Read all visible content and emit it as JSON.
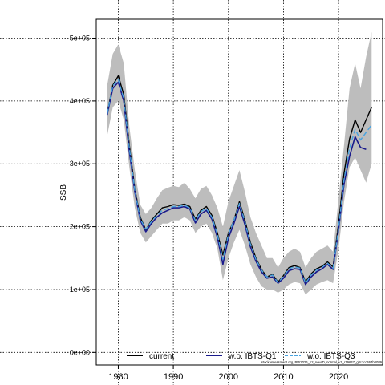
{
  "chart_data": {
    "type": "line",
    "title": "",
    "xlabel": "",
    "ylabel": "SSB",
    "xlim": [
      1976,
      2028
    ],
    "ylim": [
      -20000,
      530000
    ],
    "grid": true,
    "x_ticks": [
      1980,
      1990,
      2000,
      2010,
      2020
    ],
    "y_ticks": [
      0,
      100000,
      200000,
      300000,
      400000,
      500000
    ],
    "x_tick_labels": [
      "1980",
      "1990",
      "2000",
      "2010",
      "2020"
    ],
    "y_tick_labels": [
      "0e+00",
      "1e+05",
      "2e+05",
      "3e+05",
      "4e+05",
      "5e+05"
    ],
    "legend_position": "bottom",
    "legend": [
      {
        "label": "current",
        "color": "#000000",
        "style": "solid"
      },
      {
        "label": "w.o. IBTS-Q1",
        "color": "#1a1a8c",
        "style": "solid"
      },
      {
        "label": "w.o. IBTS-Q3",
        "color": "#4aa3df",
        "style": "dashed"
      }
    ],
    "footnote": "stockassessment.org, BW2026_12_newID, normal_v1_r19647_gitc1cc464b8089",
    "x": [
      1978,
      1979,
      1980,
      1981,
      1982,
      1983,
      1984,
      1985,
      1986,
      1987,
      1988,
      1989,
      1990,
      1991,
      1992,
      1993,
      1994,
      1995,
      1996,
      1997,
      1998,
      1999,
      2000,
      2001,
      2002,
      2003,
      2004,
      2005,
      2006,
      2007,
      2008,
      2009,
      2010,
      2011,
      2012,
      2013,
      2014,
      2015,
      2016,
      2017,
      2018,
      2019,
      2020,
      2021,
      2022,
      2023,
      2024,
      2025,
      2026
    ],
    "band": {
      "upper": [
        425000,
        475000,
        490000,
        460000,
        360000,
        290000,
        235000,
        220000,
        230000,
        245000,
        258000,
        262000,
        265000,
        263000,
        270000,
        260000,
        245000,
        260000,
        265000,
        250000,
        230000,
        200000,
        240000,
        265000,
        290000,
        255000,
        215000,
        190000,
        170000,
        150000,
        150000,
        135000,
        150000,
        160000,
        165000,
        160000,
        135000,
        150000,
        160000,
        165000,
        170000,
        160000,
        245000,
        330000,
        420000,
        460000,
        420000,
        470000,
        510000
      ],
      "lower": [
        345000,
        390000,
        400000,
        370000,
        295000,
        230000,
        190000,
        175000,
        185000,
        195000,
        205000,
        205000,
        210000,
        210000,
        215000,
        210000,
        190000,
        200000,
        205000,
        190000,
        165000,
        115000,
        150000,
        175000,
        195000,
        170000,
        140000,
        120000,
        105000,
        100000,
        100000,
        95000,
        100000,
        108000,
        112000,
        110000,
        92000,
        100000,
        108000,
        112000,
        115000,
        110000,
        165000,
        240000,
        295000,
        310000,
        290000,
        270000,
        300000
      ]
    },
    "series": [
      {
        "name": "current",
        "color": "#000000",
        "dash": "none",
        "width": 1.4,
        "values": [
          380000,
          425000,
          440000,
          410000,
          330000,
          260000,
          215000,
          195000,
          210000,
          220000,
          230000,
          232000,
          235000,
          234000,
          236000,
          232000,
          212000,
          226000,
          232000,
          218000,
          190000,
          155000,
          190000,
          210000,
          240000,
          210000,
          175000,
          150000,
          132000,
          120000,
          124000,
          112000,
          122000,
          135000,
          138000,
          135000,
          112000,
          125000,
          133000,
          137000,
          144000,
          136000,
          205000,
          285000,
          340000,
          370000,
          350000,
          370000,
          390000
        ]
      },
      {
        "name": "w.o. IBTS-Q1",
        "color": "#1a1a8c",
        "dash": "none",
        "width": 1.6,
        "values": [
          378000,
          420000,
          430000,
          400000,
          320000,
          255000,
          210000,
          192000,
          205000,
          215000,
          222000,
          226000,
          230000,
          230000,
          232000,
          228000,
          206000,
          220000,
          226000,
          212000,
          183000,
          140000,
          182000,
          205000,
          232000,
          203000,
          168000,
          145000,
          128000,
          118000,
          120000,
          110000,
          118000,
          130000,
          133000,
          132000,
          108000,
          120000,
          128000,
          133000,
          140000,
          132000,
          195000,
          268000,
          312000,
          343000,
          326000,
          323000,
          null
        ]
      },
      {
        "name": "w.o. IBTS-Q3",
        "color": "#4aa3df",
        "dash": "6,3",
        "width": 1.4,
        "values": [
          380000,
          424000,
          434000,
          404000,
          326000,
          258000,
          212000,
          196000,
          208000,
          218000,
          226000,
          229000,
          232000,
          232000,
          234000,
          230000,
          210000,
          224000,
          229000,
          215000,
          188000,
          148000,
          188000,
          210000,
          237000,
          208000,
          172000,
          148000,
          131000,
          120000,
          123000,
          111000,
          121000,
          133000,
          136000,
          134000,
          110000,
          123000,
          131000,
          135000,
          142000,
          134000,
          198000,
          275000,
          325000,
          355000,
          338000,
          350000,
          362000
        ]
      }
    ]
  }
}
